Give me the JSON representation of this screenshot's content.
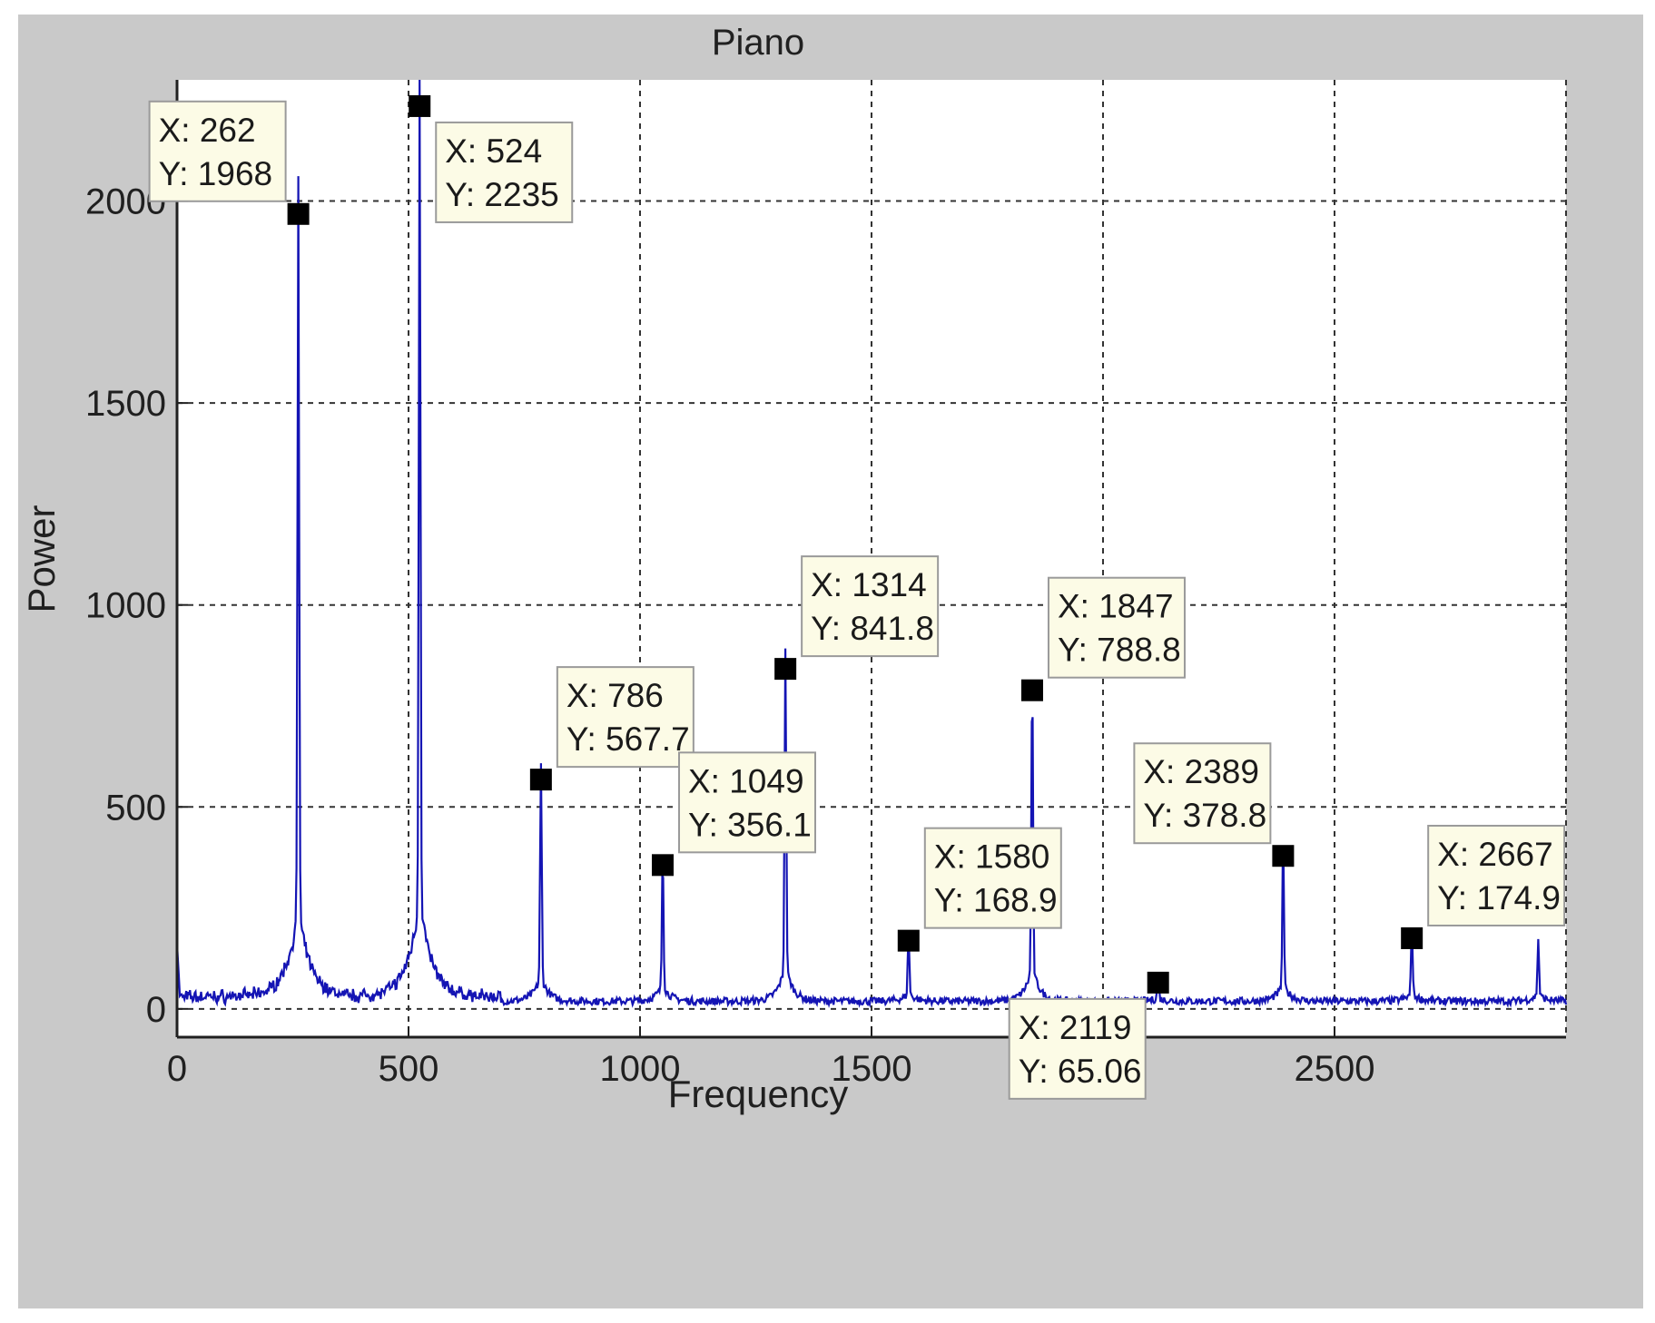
{
  "chart_data": {
    "type": "line",
    "title": "Piano",
    "xlabel": "Frequency",
    "ylabel": "Power",
    "xlim": [
      0,
      3000
    ],
    "ylim": [
      -70,
      2300
    ],
    "x_ticks": [
      "0",
      "500",
      "1000",
      "1500",
      "2500"
    ],
    "x_tick_values": [
      0,
      500,
      1000,
      1500,
      2500
    ],
    "y_ticks": [
      "0",
      "500",
      "1000",
      "1500",
      "2000"
    ],
    "y_tick_values": [
      0,
      500,
      1000,
      1500,
      2000
    ],
    "grid": true,
    "series_color": "#1414b4",
    "peaks": [
      {
        "x": 262,
        "y": 1968
      },
      {
        "x": 524,
        "y": 2235
      },
      {
        "x": 786,
        "y": 567.7
      },
      {
        "x": 1049,
        "y": 356.1
      },
      {
        "x": 1314,
        "y": 841.8
      },
      {
        "x": 1580,
        "y": 168.9
      },
      {
        "x": 1847,
        "y": 788.8
      },
      {
        "x": 2119,
        "y": 65.06
      },
      {
        "x": 2389,
        "y": 378.8
      },
      {
        "x": 2667,
        "y": 174.9
      },
      {
        "x": 2940,
        "y": 150
      }
    ],
    "datatips": [
      {
        "x": 262,
        "y": 1968,
        "x_text": "X: 262",
        "y_text": "Y: 1968",
        "placement": "upper-left"
      },
      {
        "x": 524,
        "y": 2235,
        "x_text": "X: 524",
        "y_text": "Y: 2235",
        "placement": "lower-right"
      },
      {
        "x": 786,
        "y": 567.7,
        "x_text": "X: 786",
        "y_text": "Y: 567.7",
        "placement": "upper-right"
      },
      {
        "x": 1049,
        "y": 356.1,
        "x_text": "X: 1049",
        "y_text": "Y: 356.1",
        "placement": "upper-right"
      },
      {
        "x": 1314,
        "y": 841.8,
        "x_text": "X: 1314",
        "y_text": "Y: 841.8",
        "placement": "upper-right"
      },
      {
        "x": 1580,
        "y": 168.9,
        "x_text": "X: 1580",
        "y_text": "Y: 168.9",
        "placement": "upper-right"
      },
      {
        "x": 1847,
        "y": 788.8,
        "x_text": "X: 1847",
        "y_text": "Y: 788.8",
        "placement": "upper-right"
      },
      {
        "x": 2119,
        "y": 65.06,
        "x_text": "X: 2119",
        "y_text": "Y: 65.06",
        "placement": "lower-left"
      },
      {
        "x": 2389,
        "y": 378.8,
        "x_text": "X: 2389",
        "y_text": "Y: 378.8",
        "placement": "upper-left"
      },
      {
        "x": 2667,
        "y": 174.9,
        "x_text": "X: 2667",
        "y_text": "Y: 174.9",
        "placement": "upper-right"
      }
    ]
  }
}
